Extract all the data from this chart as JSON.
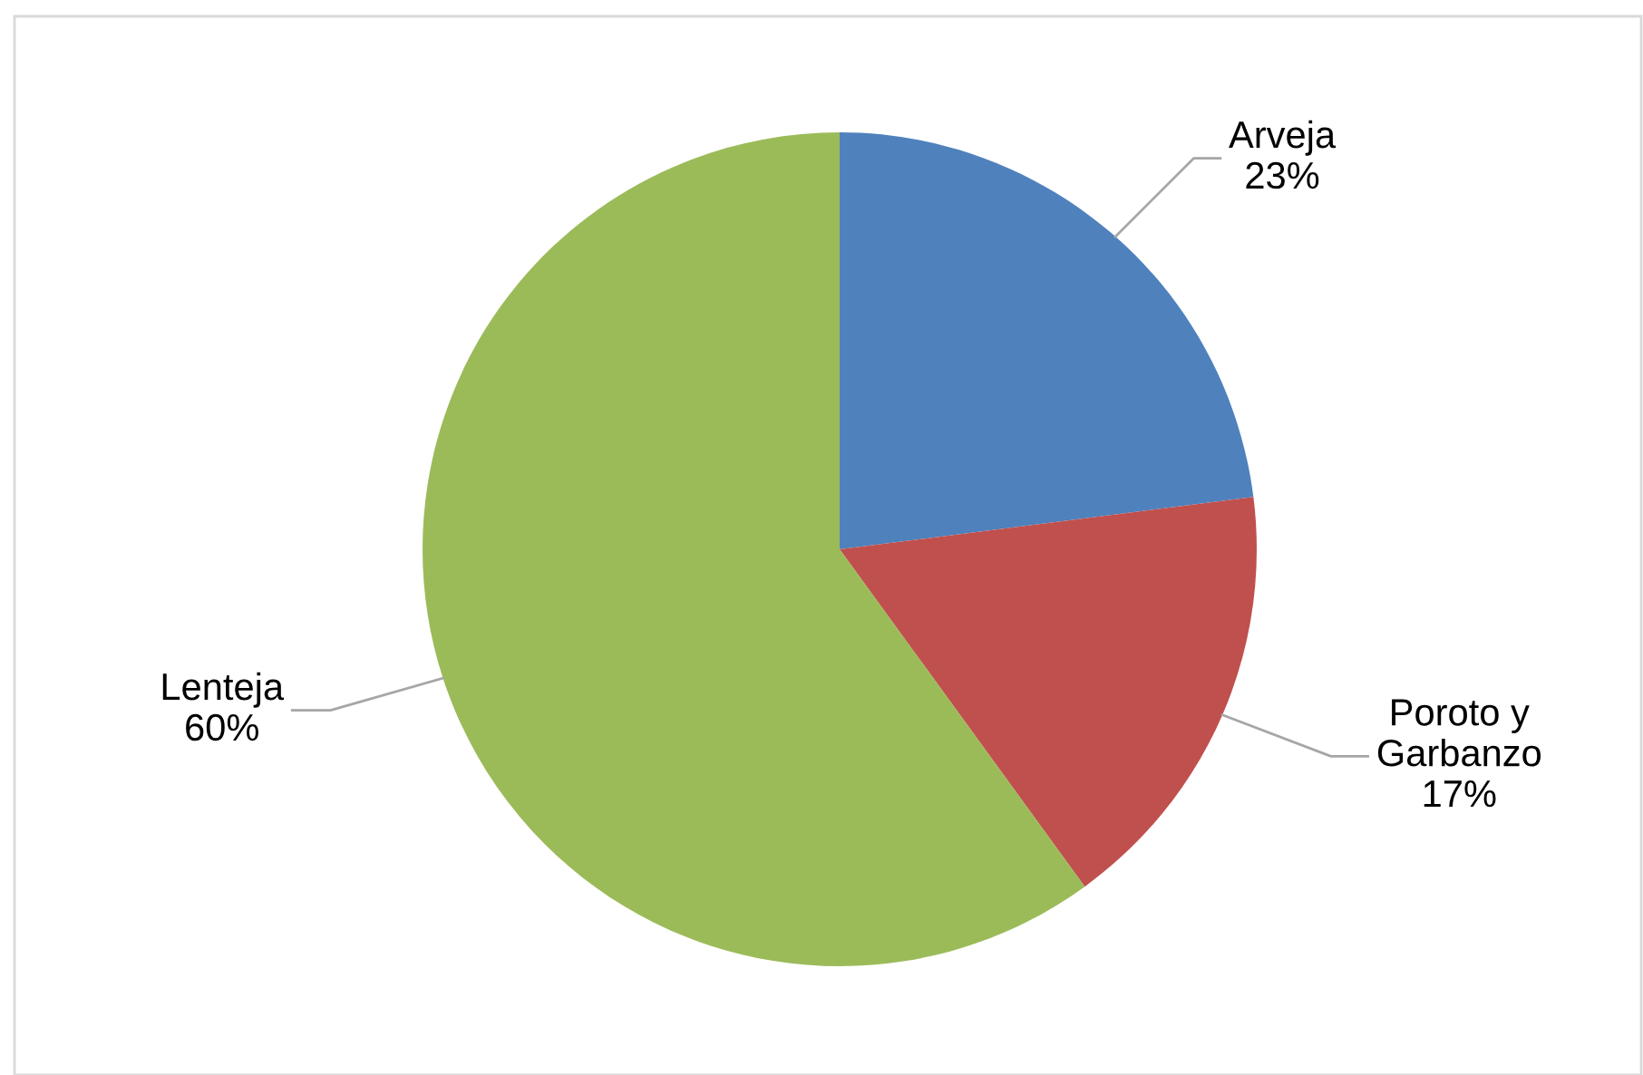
{
  "chart_data": {
    "type": "pie",
    "categories": [
      "Arveja",
      "Poroto y\nGarbanzo",
      "Lenteja"
    ],
    "values": [
      23,
      17,
      60
    ],
    "colors": [
      "#4f81bd",
      "#c0504d",
      "#9bbb59"
    ],
    "value_labels": [
      "23%",
      "17%",
      "60%"
    ],
    "legend": false
  }
}
